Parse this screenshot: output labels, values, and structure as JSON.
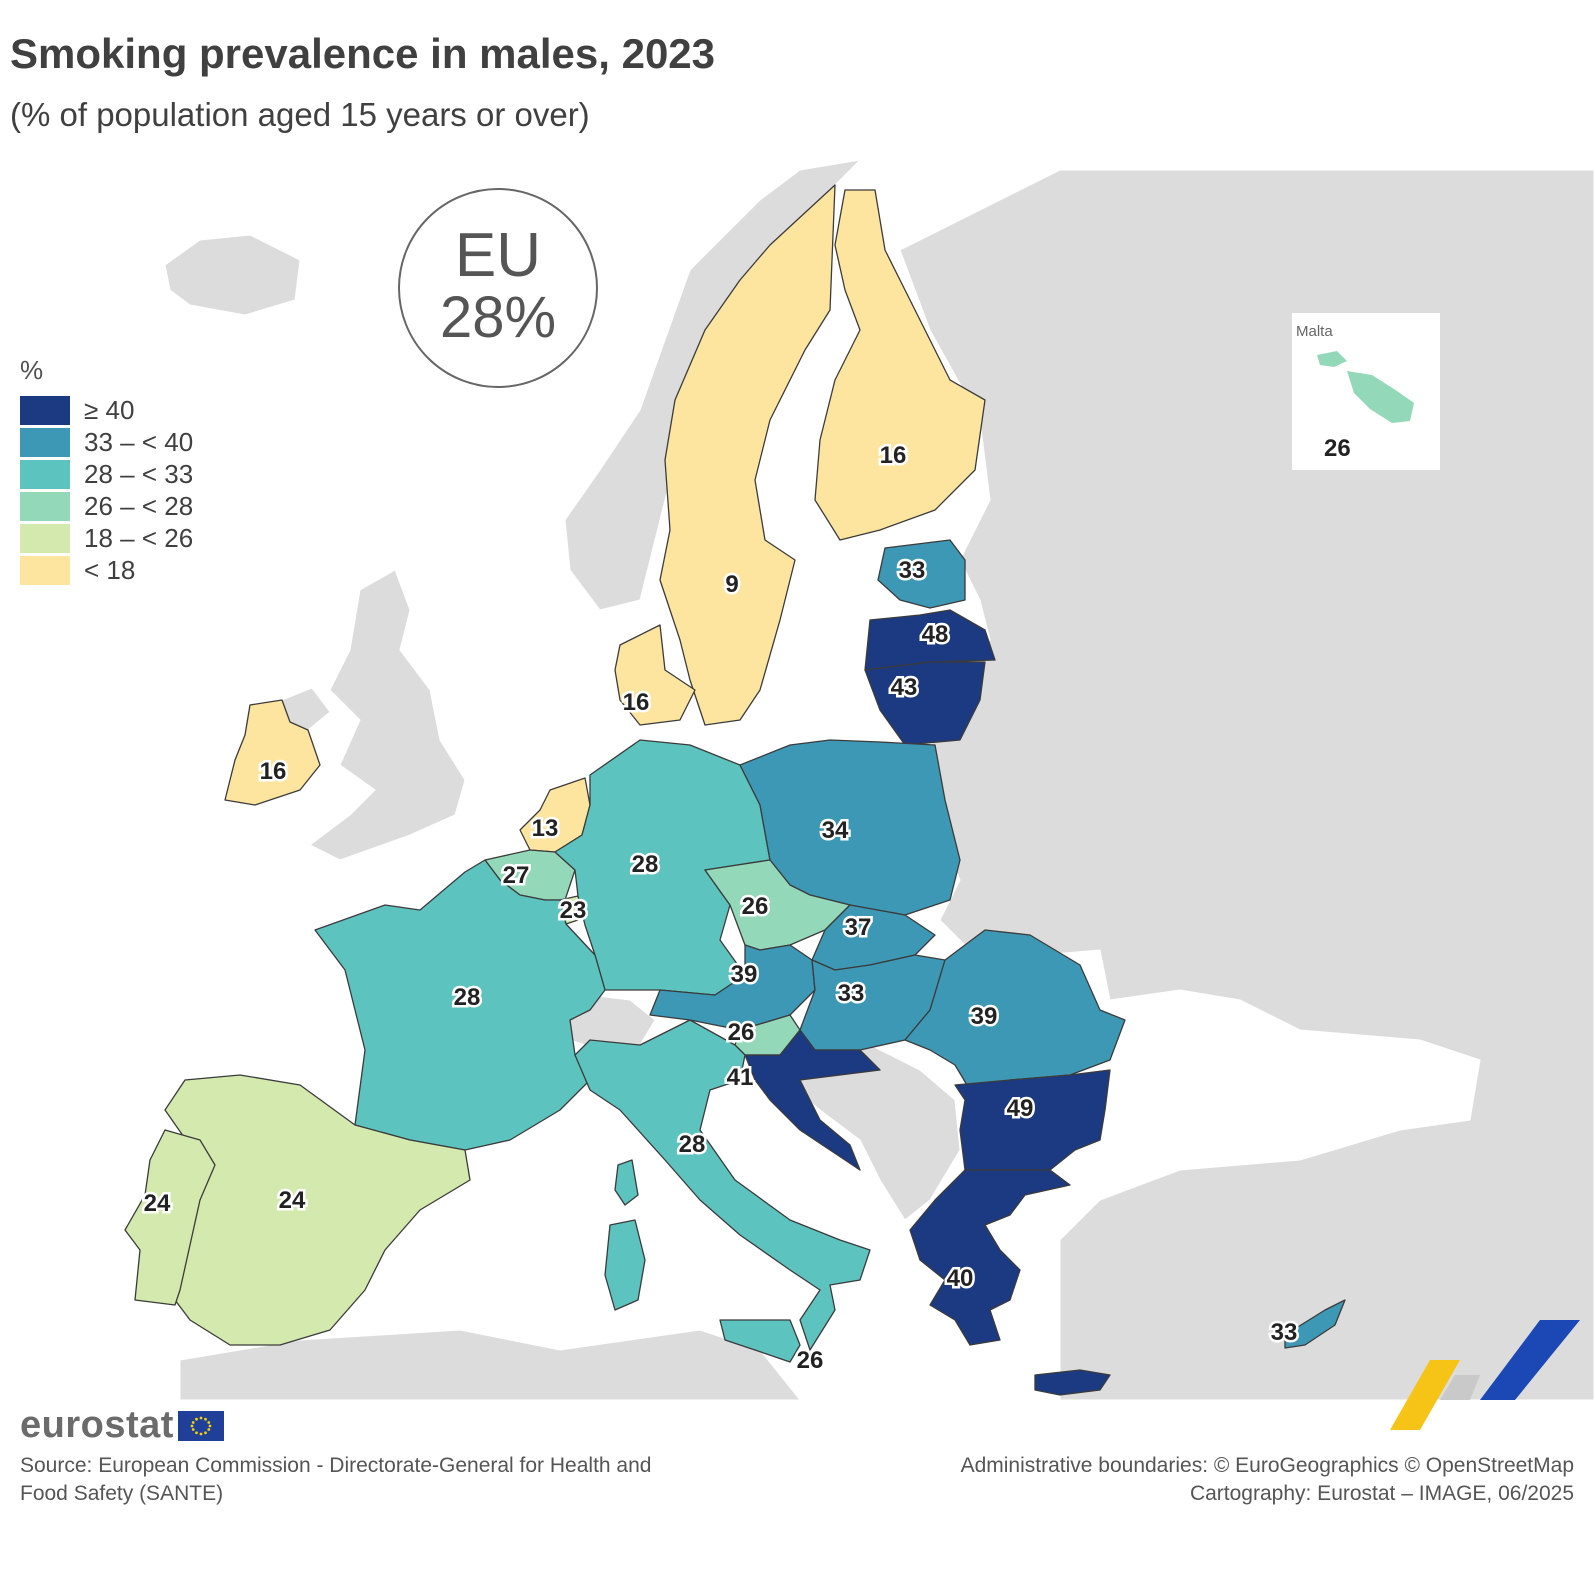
{
  "header": {
    "title": "Smoking prevalence in males, 2023",
    "subtitle": "(% of population aged 15 years or over)"
  },
  "eu_badge": {
    "label": "EU",
    "value": "28%"
  },
  "legend": {
    "unit": "%",
    "classes": [
      {
        "label": "≥ 40",
        "color": "#1c3a82"
      },
      {
        "label": "33 – < 40",
        "color": "#3d98b5"
      },
      {
        "label": "28 – < 33",
        "color": "#5cc3bf"
      },
      {
        "label": "26 – < 28",
        "color": "#93d8b8"
      },
      {
        "label": "18 – < 26",
        "color": "#d3e9ad"
      },
      {
        "label": "< 18",
        "color": "#fde5a0"
      }
    ]
  },
  "map_data": {
    "non_eu_color": "#dcdcdc",
    "countries": [
      {
        "name": "Sweden",
        "value": 9
      },
      {
        "name": "Finland",
        "value": 16
      },
      {
        "name": "Estonia",
        "value": 33
      },
      {
        "name": "Latvia",
        "value": 48
      },
      {
        "name": "Lithuania",
        "value": 43
      },
      {
        "name": "Denmark",
        "value": 16
      },
      {
        "name": "Ireland",
        "value": 16
      },
      {
        "name": "Netherlands",
        "value": 13
      },
      {
        "name": "Belgium",
        "value": 27
      },
      {
        "name": "Luxembourg",
        "value": 23
      },
      {
        "name": "Germany",
        "value": 28
      },
      {
        "name": "Poland",
        "value": 34
      },
      {
        "name": "Czechia",
        "value": 26
      },
      {
        "name": "Slovakia",
        "value": 37
      },
      {
        "name": "Austria",
        "value": 39
      },
      {
        "name": "Hungary",
        "value": 33
      },
      {
        "name": "Romania",
        "value": 39
      },
      {
        "name": "France",
        "value": 28
      },
      {
        "name": "Slovenia",
        "value": 26
      },
      {
        "name": "Croatia",
        "value": 41
      },
      {
        "name": "Italy",
        "value": 28
      },
      {
        "name": "Bulgaria",
        "value": 49
      },
      {
        "name": "Greece",
        "value": 40
      },
      {
        "name": "Spain",
        "value": 24
      },
      {
        "name": "Portugal",
        "value": 24
      },
      {
        "name": "Cyprus",
        "value": 33
      },
      {
        "name": "Malta",
        "value": 26
      }
    ]
  },
  "malta_inset": {
    "name": "Malta",
    "value": "26"
  },
  "footer": {
    "logo": "eurostat",
    "source": "Source: European Commission - Directorate-General for Health and Food Safety (SANTE)",
    "boundaries": "Administrative boundaries: © EuroGeographics © OpenStreetMap",
    "cartography": "Cartography: Eurostat – IMAGE, 06/2025"
  }
}
